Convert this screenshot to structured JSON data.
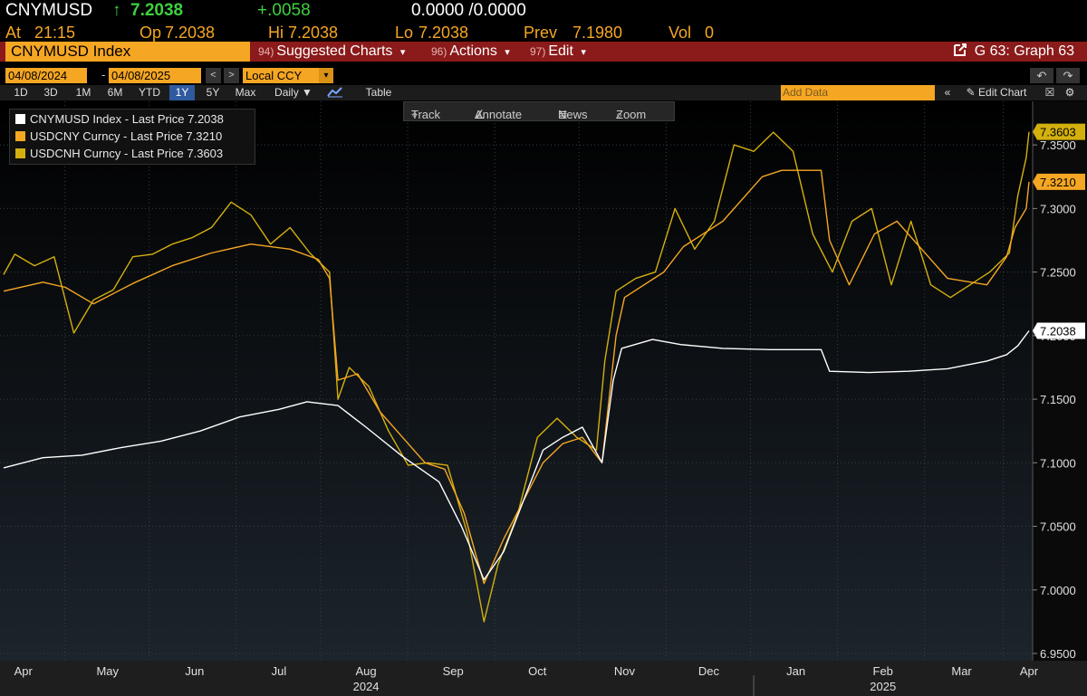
{
  "header": {
    "ticker": "CNYMUSD",
    "arrow": "↑",
    "last": "7.2038",
    "change": "+.0058",
    "bidask": "0.0000 /0.0000",
    "at_label": "At",
    "at_value": "21:15",
    "op_label": "Op",
    "op_value": "7.2038",
    "hi_label": "Hi",
    "hi_value": "7.2038",
    "lo_label": "Lo",
    "lo_value": "7.2038",
    "prev_label": "Prev",
    "prev_value": "7.1980",
    "vol_label": "Vol",
    "vol_value": "0"
  },
  "menubar": {
    "index_label": "CNYMUSD Index",
    "items": [
      {
        "num": "94)",
        "label": "Suggested Charts",
        "arrow": "▾"
      },
      {
        "num": "96)",
        "label": "Actions",
        "arrow": "▾"
      },
      {
        "num": "97)",
        "label": "Edit",
        "arrow": "▾"
      }
    ],
    "graph_label": "G 63: Graph 63"
  },
  "datebar": {
    "start": "04/08/2024",
    "sep": "-",
    "end": "04/08/2025",
    "ccy": "Local CCY",
    "prev_arrow": "<",
    "next_arrow": ">",
    "dropdown_arrow": "▾"
  },
  "rangebar": {
    "ranges": [
      "1D",
      "3D",
      "1M",
      "6M",
      "YTD",
      "1Y",
      "5Y",
      "Max"
    ],
    "active": "1Y",
    "frequency": "Daily ▼",
    "table": "Table",
    "add_data_placeholder": "Add Data",
    "edit_chart": "Edit Chart"
  },
  "charttools": {
    "track": "Track",
    "annotate": "Annotate",
    "news": "News",
    "zoom": "Zoom"
  },
  "chart_data": {
    "type": "line",
    "x_type": "date",
    "xlim": [
      "2024-04-08",
      "2025-04-08"
    ],
    "ylim": [
      6.95,
      7.38
    ],
    "y_ticks": [
      6.95,
      7.0,
      7.05,
      7.1,
      7.15,
      7.2,
      7.25,
      7.3,
      7.35
    ],
    "y_tick_labels": [
      "6.9500",
      "7.0000",
      "7.0500",
      "7.1000",
      "7.1500",
      "7.2000",
      "7.2500",
      "7.3000",
      "7.3500"
    ],
    "month_ticks": [
      "2024-04-15",
      "2024-05-15",
      "2024-06-15",
      "2024-07-15",
      "2024-08-15",
      "2024-09-15",
      "2024-10-15",
      "2024-11-15",
      "2024-12-15",
      "2025-01-15",
      "2025-02-15",
      "2025-03-15",
      "2025-04-08"
    ],
    "month_labels": [
      "Apr",
      "May",
      "Jun",
      "Jul",
      "Aug",
      "Sep",
      "Oct",
      "Nov",
      "Dec",
      "Jan",
      "Feb",
      "Mar",
      "Apr"
    ],
    "year_labels": [
      {
        "date": "2024-08-15",
        "label": "2024"
      },
      {
        "date": "2025-02-15",
        "label": "2025"
      }
    ],
    "grid": true,
    "legend_position": "top-left",
    "series": [
      {
        "name": "CNYMUSD Index - Last Price 7.2038",
        "color": "#ffffff",
        "last_label": "7.2038",
        "points": [
          [
            "2024-04-08",
            7.096
          ],
          [
            "2024-04-22",
            7.104
          ],
          [
            "2024-05-06",
            7.106
          ],
          [
            "2024-05-20",
            7.112
          ],
          [
            "2024-06-03",
            7.117
          ],
          [
            "2024-06-17",
            7.125
          ],
          [
            "2024-07-01",
            7.136
          ],
          [
            "2024-07-15",
            7.142
          ],
          [
            "2024-07-25",
            7.148
          ],
          [
            "2024-08-05",
            7.145
          ],
          [
            "2024-08-15",
            7.128
          ],
          [
            "2024-08-28",
            7.105
          ],
          [
            "2024-09-10",
            7.085
          ],
          [
            "2024-09-18",
            7.05
          ],
          [
            "2024-09-26",
            7.008
          ],
          [
            "2024-10-03",
            7.03
          ],
          [
            "2024-10-10",
            7.07
          ],
          [
            "2024-10-17",
            7.11
          ],
          [
            "2024-10-24",
            7.12
          ],
          [
            "2024-10-31",
            7.128
          ],
          [
            "2024-11-07",
            7.1
          ],
          [
            "2024-11-11",
            7.165
          ],
          [
            "2024-11-14",
            7.19
          ],
          [
            "2024-11-25",
            7.197
          ],
          [
            "2024-12-05",
            7.193
          ],
          [
            "2024-12-20",
            7.19
          ],
          [
            "2025-01-06",
            7.189
          ],
          [
            "2025-01-20",
            7.189
          ],
          [
            "2025-01-24",
            7.189
          ],
          [
            "2025-01-27",
            7.172
          ],
          [
            "2025-02-10",
            7.171
          ],
          [
            "2025-02-24",
            7.172
          ],
          [
            "2025-03-10",
            7.174
          ],
          [
            "2025-03-24",
            7.18
          ],
          [
            "2025-03-31",
            7.185
          ],
          [
            "2025-04-04",
            7.192
          ],
          [
            "2025-04-08",
            7.2038
          ]
        ]
      },
      {
        "name": "USDCNY Curncy - Last Price 7.3210",
        "color": "#f5a623",
        "last_label": "7.3210",
        "points": [
          [
            "2024-04-08",
            7.235
          ],
          [
            "2024-04-22",
            7.242
          ],
          [
            "2024-04-30",
            7.238
          ],
          [
            "2024-05-10",
            7.225
          ],
          [
            "2024-05-24",
            7.241
          ],
          [
            "2024-06-07",
            7.255
          ],
          [
            "2024-06-21",
            7.265
          ],
          [
            "2024-07-05",
            7.272
          ],
          [
            "2024-07-19",
            7.268
          ],
          [
            "2024-07-29",
            7.26
          ],
          [
            "2024-08-02",
            7.245
          ],
          [
            "2024-08-05",
            7.165
          ],
          [
            "2024-08-12",
            7.17
          ],
          [
            "2024-08-20",
            7.14
          ],
          [
            "2024-08-28",
            7.12
          ],
          [
            "2024-09-05",
            7.1
          ],
          [
            "2024-09-12",
            7.095
          ],
          [
            "2024-09-19",
            7.06
          ],
          [
            "2024-09-26",
            7.005
          ],
          [
            "2024-10-03",
            7.04
          ],
          [
            "2024-10-10",
            7.07
          ],
          [
            "2024-10-17",
            7.1
          ],
          [
            "2024-10-24",
            7.115
          ],
          [
            "2024-10-31",
            7.12
          ],
          [
            "2024-11-07",
            7.1
          ],
          [
            "2024-11-12",
            7.2
          ],
          [
            "2024-11-15",
            7.23
          ],
          [
            "2024-11-29",
            7.25
          ],
          [
            "2024-12-06",
            7.27
          ],
          [
            "2024-12-20",
            7.29
          ],
          [
            "2025-01-03",
            7.325
          ],
          [
            "2025-01-10",
            7.33
          ],
          [
            "2025-01-24",
            7.33
          ],
          [
            "2025-01-27",
            7.275
          ],
          [
            "2025-02-03",
            7.24
          ],
          [
            "2025-02-12",
            7.28
          ],
          [
            "2025-02-20",
            7.29
          ],
          [
            "2025-02-28",
            7.27
          ],
          [
            "2025-03-10",
            7.245
          ],
          [
            "2025-03-24",
            7.24
          ],
          [
            "2025-03-31",
            7.262
          ],
          [
            "2025-04-03",
            7.285
          ],
          [
            "2025-04-07",
            7.3
          ],
          [
            "2025-04-08",
            7.321
          ]
        ]
      },
      {
        "name": "USDCNH Curncy - Last Price 7.3603",
        "color": "#d4b00e",
        "last_label": "7.3603",
        "points": [
          [
            "2024-04-08",
            7.248
          ],
          [
            "2024-04-12",
            7.264
          ],
          [
            "2024-04-19",
            7.255
          ],
          [
            "2024-04-26",
            7.262
          ],
          [
            "2024-05-03",
            7.202
          ],
          [
            "2024-05-10",
            7.228
          ],
          [
            "2024-05-17",
            7.236
          ],
          [
            "2024-05-24",
            7.262
          ],
          [
            "2024-05-31",
            7.264
          ],
          [
            "2024-06-07",
            7.272
          ],
          [
            "2024-06-14",
            7.277
          ],
          [
            "2024-06-21",
            7.285
          ],
          [
            "2024-06-28",
            7.305
          ],
          [
            "2024-07-05",
            7.295
          ],
          [
            "2024-07-12",
            7.272
          ],
          [
            "2024-07-19",
            7.285
          ],
          [
            "2024-07-26",
            7.265
          ],
          [
            "2024-08-02",
            7.25
          ],
          [
            "2024-08-05",
            7.15
          ],
          [
            "2024-08-09",
            7.175
          ],
          [
            "2024-08-16",
            7.16
          ],
          [
            "2024-08-23",
            7.125
          ],
          [
            "2024-08-30",
            7.098
          ],
          [
            "2024-09-06",
            7.1
          ],
          [
            "2024-09-13",
            7.098
          ],
          [
            "2024-09-20",
            7.045
          ],
          [
            "2024-09-26",
            6.975
          ],
          [
            "2024-10-01",
            7.02
          ],
          [
            "2024-10-08",
            7.06
          ],
          [
            "2024-10-15",
            7.12
          ],
          [
            "2024-10-22",
            7.135
          ],
          [
            "2024-10-29",
            7.12
          ],
          [
            "2024-11-05",
            7.11
          ],
          [
            "2024-11-08",
            7.18
          ],
          [
            "2024-11-12",
            7.235
          ],
          [
            "2024-11-19",
            7.245
          ],
          [
            "2024-11-26",
            7.25
          ],
          [
            "2024-12-03",
            7.3
          ],
          [
            "2024-12-10",
            7.268
          ],
          [
            "2024-12-17",
            7.29
          ],
          [
            "2024-12-24",
            7.35
          ],
          [
            "2024-12-31",
            7.345
          ],
          [
            "2025-01-07",
            7.36
          ],
          [
            "2025-01-14",
            7.345
          ],
          [
            "2025-01-21",
            7.28
          ],
          [
            "2025-01-28",
            7.25
          ],
          [
            "2025-02-04",
            7.29
          ],
          [
            "2025-02-11",
            7.3
          ],
          [
            "2025-02-18",
            7.24
          ],
          [
            "2025-02-25",
            7.29
          ],
          [
            "2025-03-04",
            7.24
          ],
          [
            "2025-03-11",
            7.23
          ],
          [
            "2025-03-18",
            7.24
          ],
          [
            "2025-03-25",
            7.25
          ],
          [
            "2025-04-01",
            7.265
          ],
          [
            "2025-04-04",
            7.31
          ],
          [
            "2025-04-07",
            7.34
          ],
          [
            "2025-04-08",
            7.3603
          ]
        ]
      }
    ]
  }
}
